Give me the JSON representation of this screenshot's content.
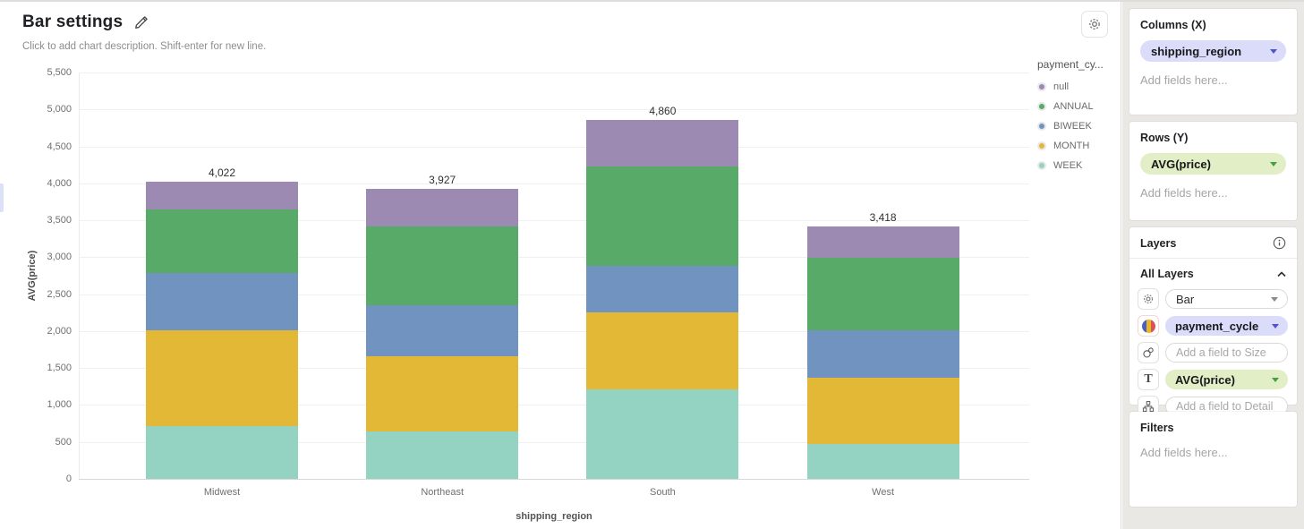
{
  "header": {
    "title": "Bar settings",
    "subtitle": "Click to add chart description. Shift-enter for new line."
  },
  "chart_data": {
    "type": "bar",
    "stacked": true,
    "categories": [
      "Midwest",
      "Northeast",
      "South",
      "West"
    ],
    "series": [
      {
        "name": "WEEK",
        "color": "#94d3c1",
        "values": [
          714,
          641,
          1215,
          471
        ]
      },
      {
        "name": "MONTH",
        "color": "#e3b836",
        "values": [
          1298,
          1014,
          1038,
          901
        ]
      },
      {
        "name": "BIWEEK",
        "color": "#7093c0",
        "values": [
          779,
          690,
          629,
          636
        ]
      },
      {
        "name": "ANNUAL",
        "color": "#57aa68",
        "values": [
          856,
          1071,
          1341,
          986
        ]
      },
      {
        "name": "null",
        "color": "#9d8ab3",
        "values": [
          375,
          511,
          637,
          424
        ]
      }
    ],
    "totals": [
      "4,022",
      "3,927",
      "4,860",
      "3,418"
    ],
    "legend_title": "payment_cy...",
    "legend": [
      {
        "label": "null",
        "color": "#9d8ab3"
      },
      {
        "label": "ANNUAL",
        "color": "#57aa68"
      },
      {
        "label": "BIWEEK",
        "color": "#7093c0"
      },
      {
        "label": "MONTH",
        "color": "#e3b836"
      },
      {
        "label": "WEEK",
        "color": "#94d3c1"
      }
    ],
    "legend_position": "right",
    "xlabel": "shipping_region",
    "ylabel": "AVG(price)",
    "ylim": [
      0,
      5500
    ],
    "ytick_step": 500,
    "grid": true
  },
  "sidebar": {
    "columns": {
      "title": "Columns (X)",
      "field": "shipping_region",
      "placeholder": "Add fields here..."
    },
    "rows": {
      "title": "Rows (Y)",
      "field": "AVG(price)",
      "placeholder": "Add fields here..."
    },
    "layers": {
      "title": "Layers",
      "group": "All Layers",
      "items": [
        {
          "icon": "gear-icon",
          "value": "Bar"
        },
        {
          "icon": "color-icon",
          "value": "payment_cycle"
        },
        {
          "icon": "size-icon",
          "placeholder": "Add a field to Size"
        },
        {
          "icon": "text-icon",
          "glyph": "T",
          "value": "AVG(price)"
        },
        {
          "icon": "detail-icon",
          "placeholder": "Add a field to Detail"
        }
      ]
    },
    "filters": {
      "title": "Filters",
      "placeholder": "Add fields here..."
    }
  },
  "colors": {
    "pill_purple_bg": "#dadcf9",
    "pill_green_bg": "#e2eec5",
    "caret_indigo": "#4f54c8",
    "caret_green": "#44a047",
    "sidebar_bg": "#eae8e4",
    "left_handle": "#dbe2f7"
  }
}
